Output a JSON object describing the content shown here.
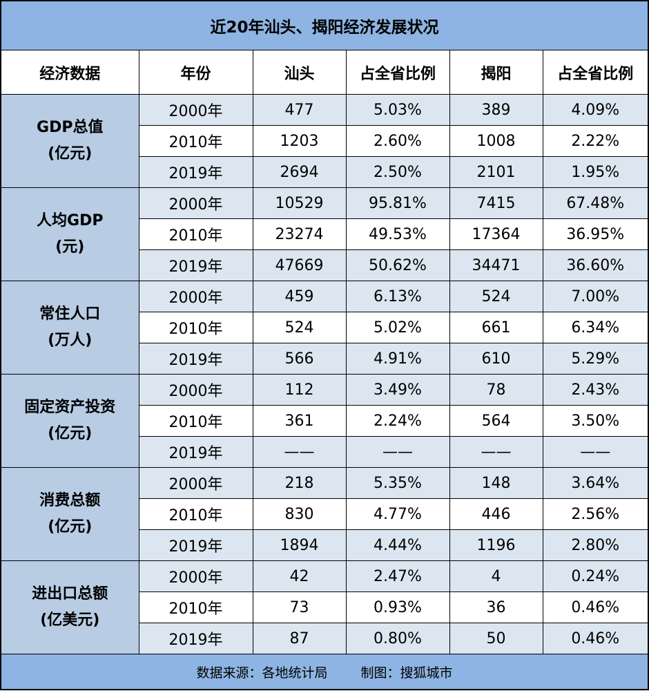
{
  "title": "近20年汕头、揭阳经济发展状况",
  "headers": [
    "经济数据",
    "年份",
    "汕头",
    "占全省比例",
    "揭阳",
    "占全省比例"
  ],
  "groups": [
    {
      "label_line1": "GDP总值",
      "label_line2": "(亿元)",
      "rows": [
        {
          "year": "2000年",
          "shantou": "477",
          "shantou_pct": "5.03%",
          "jieyang": "389",
          "jieyang_pct": "4.09%"
        },
        {
          "year": "2010年",
          "shantou": "1203",
          "shantou_pct": "2.60%",
          "jieyang": "1008",
          "jieyang_pct": "2.22%"
        },
        {
          "year": "2019年",
          "shantou": "2694",
          "shantou_pct": "2.50%",
          "jieyang": "2101",
          "jieyang_pct": "1.95%"
        }
      ]
    },
    {
      "label_line1": "人均GDP",
      "label_line2": "(元)",
      "rows": [
        {
          "year": "2000年",
          "shantou": "10529",
          "shantou_pct": "95.81%",
          "jieyang": "7415",
          "jieyang_pct": "67.48%"
        },
        {
          "year": "2010年",
          "shantou": "23274",
          "shantou_pct": "49.53%",
          "jieyang": "17364",
          "jieyang_pct": "36.95%"
        },
        {
          "year": "2019年",
          "shantou": "47669",
          "shantou_pct": "50.62%",
          "jieyang": "34471",
          "jieyang_pct": "36.60%"
        }
      ]
    },
    {
      "label_line1": "常住人口",
      "label_line2": "(万人)",
      "rows": [
        {
          "year": "2000年",
          "shantou": "459",
          "shantou_pct": "6.13%",
          "jieyang": "524",
          "jieyang_pct": "7.00%"
        },
        {
          "year": "2010年",
          "shantou": "524",
          "shantou_pct": "5.02%",
          "jieyang": "661",
          "jieyang_pct": "6.34%"
        },
        {
          "year": "2019年",
          "shantou": "566",
          "shantou_pct": "4.91%",
          "jieyang": "610",
          "jieyang_pct": "5.29%"
        }
      ]
    },
    {
      "label_line1": "固定资产投资",
      "label_line2": "(亿元)",
      "rows": [
        {
          "year": "2000年",
          "shantou": "112",
          "shantou_pct": "3.49%",
          "jieyang": "78",
          "jieyang_pct": "2.43%"
        },
        {
          "year": "2010年",
          "shantou": "361",
          "shantou_pct": "2.24%",
          "jieyang": "564",
          "jieyang_pct": "3.50%"
        },
        {
          "year": "2019年",
          "shantou": "——",
          "shantou_pct": "——",
          "jieyang": "——",
          "jieyang_pct": "——"
        }
      ]
    },
    {
      "label_line1": "消费总额",
      "label_line2": "(亿元)",
      "rows": [
        {
          "year": "2000年",
          "shantou": "218",
          "shantou_pct": "5.35%",
          "jieyang": "148",
          "jieyang_pct": "3.64%"
        },
        {
          "year": "2010年",
          "shantou": "830",
          "shantou_pct": "4.77%",
          "jieyang": "446",
          "jieyang_pct": "2.56%"
        },
        {
          "year": "2019年",
          "shantou": "1894",
          "shantou_pct": "4.44%",
          "jieyang": "1196",
          "jieyang_pct": "2.80%"
        }
      ]
    },
    {
      "label_line1": "进出口总额",
      "label_line2": "(亿美元)",
      "rows": [
        {
          "year": "2000年",
          "shantou": "42",
          "shantou_pct": "2.47%",
          "jieyang": "4",
          "jieyang_pct": "0.24%"
        },
        {
          "year": "2010年",
          "shantou": "73",
          "shantou_pct": "0.93%",
          "jieyang": "36",
          "jieyang_pct": "0.46%"
        },
        {
          "year": "2019年",
          "shantou": "87",
          "shantou_pct": "0.80%",
          "jieyang": "50",
          "jieyang_pct": "0.46%"
        }
      ]
    }
  ],
  "footer": {
    "source": "数据来源：各地统计局",
    "credit": "制图：搜狐城市"
  },
  "colors": {
    "title_bg": "#8db4e2",
    "category_bg": "#b8cce4",
    "alt_row_bg": "#dce6f1",
    "border": "#000000"
  }
}
